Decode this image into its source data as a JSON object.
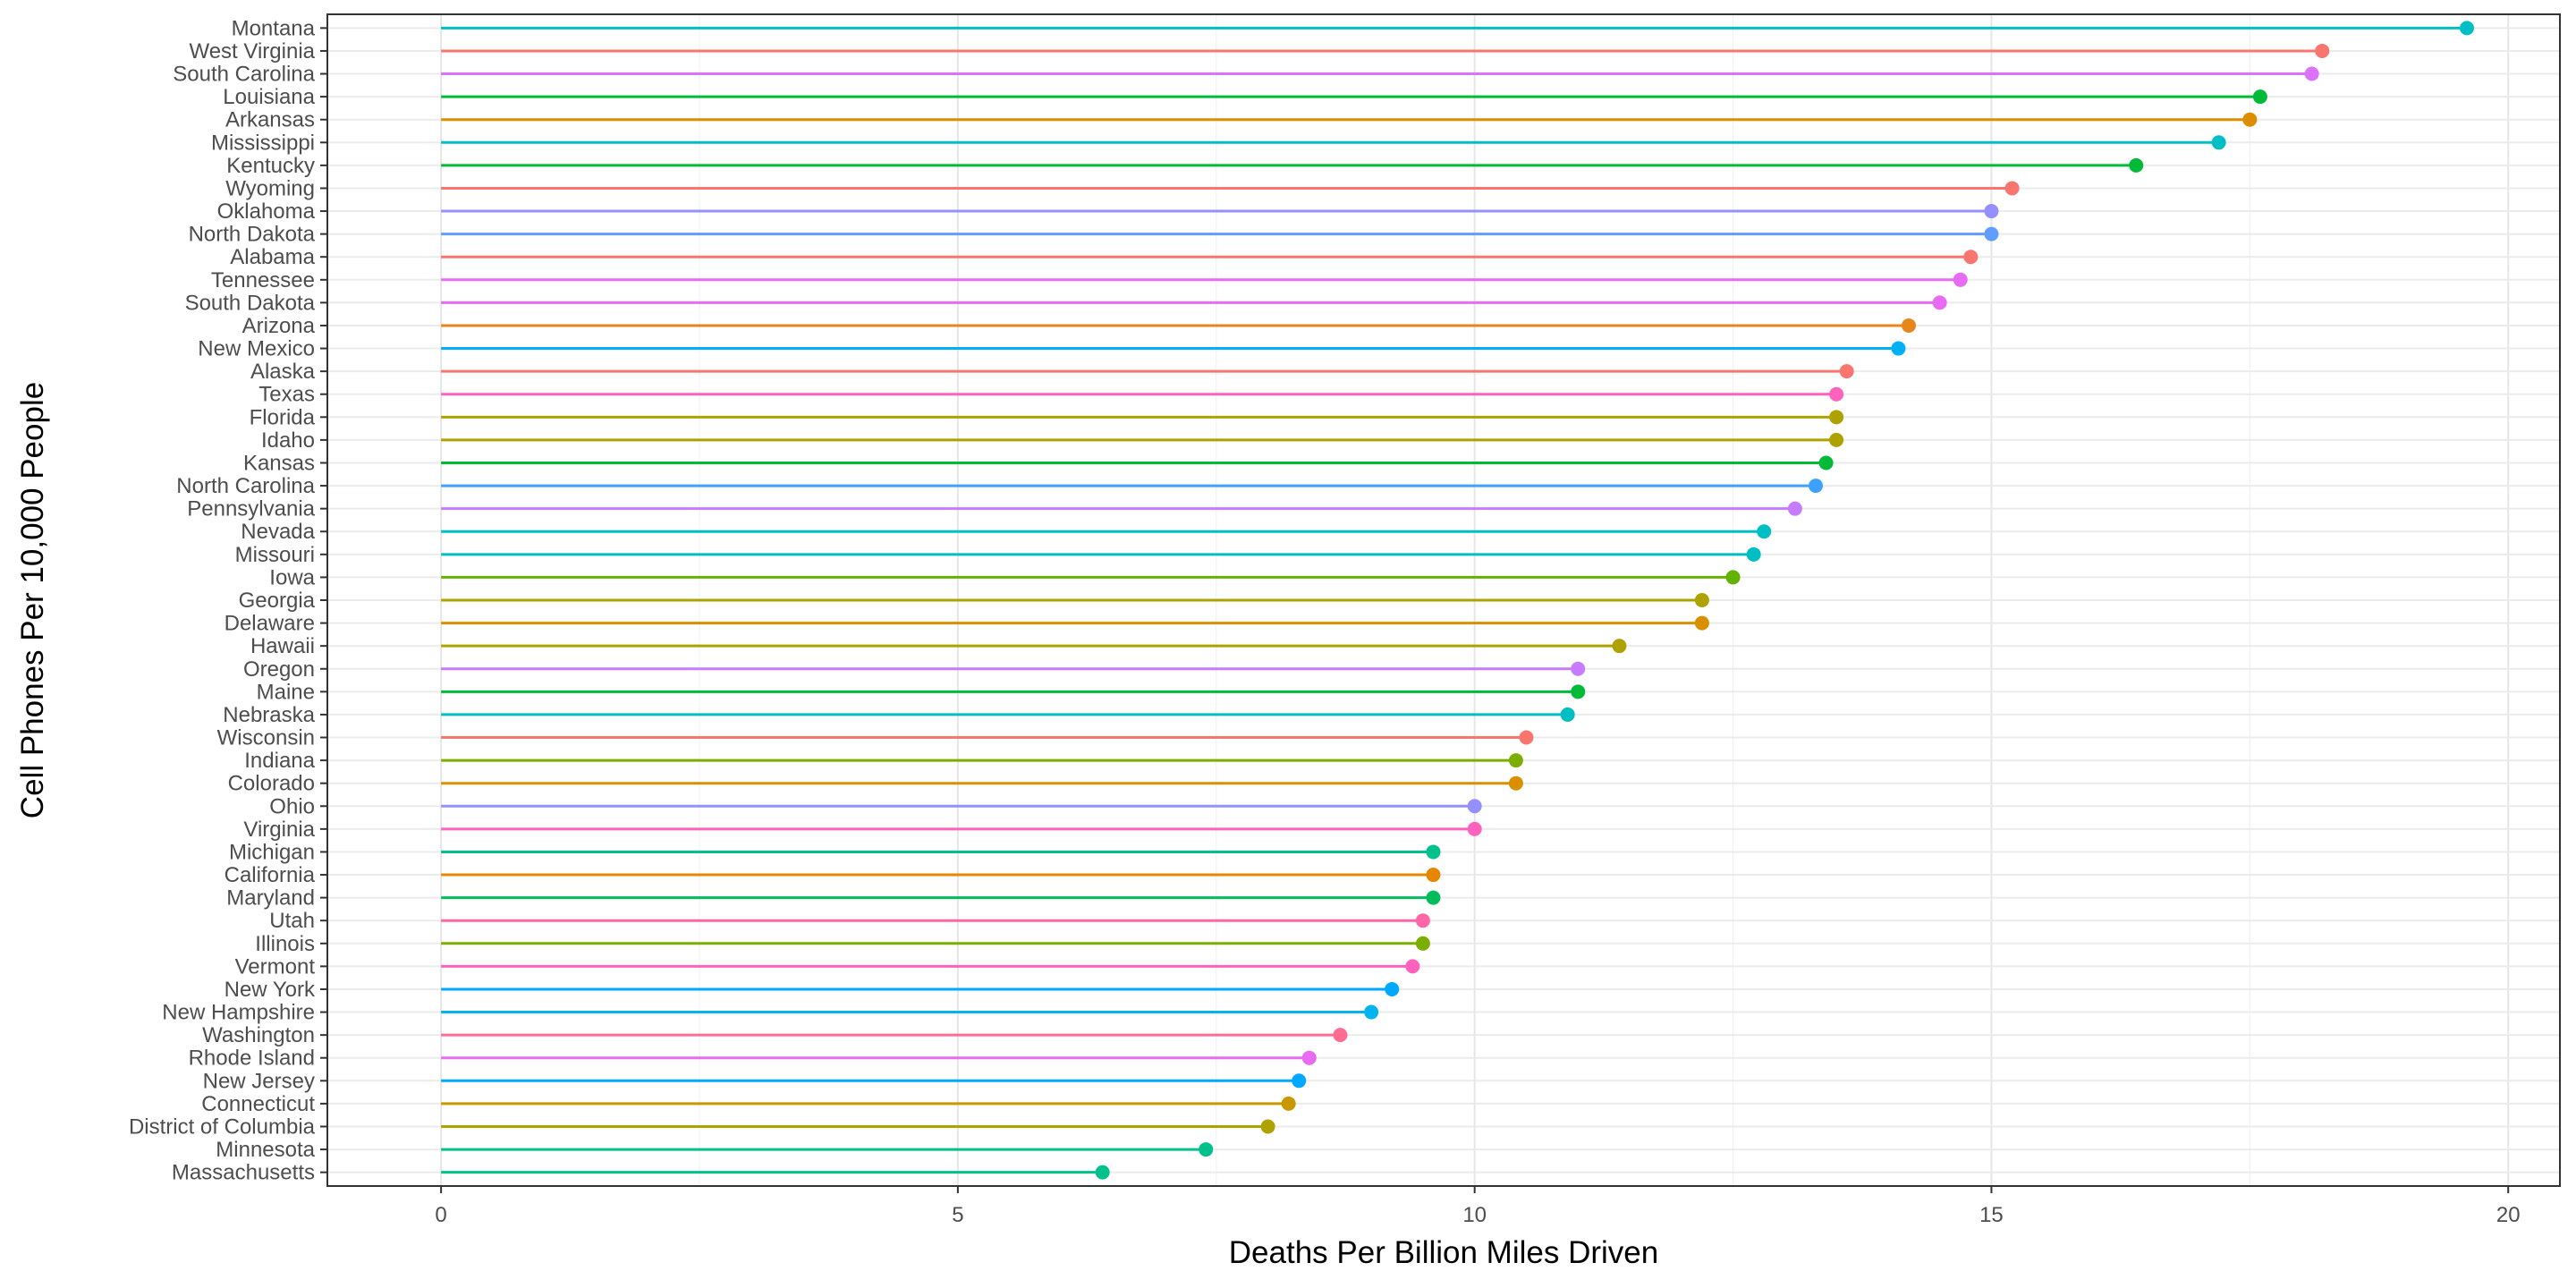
{
  "chart_data": {
    "type": "lollipop",
    "xlabel": "Deaths Per Billion Miles Driven",
    "ylabel": "Cell Phones Per 10,000 People",
    "xlim": [
      -1.1,
      20.5
    ],
    "xticks": [
      0,
      5,
      10,
      15,
      20
    ],
    "grid": true,
    "legend": "none",
    "categories": [
      "Montana",
      "West Virginia",
      "South Carolina",
      "Louisiana",
      "Arkansas",
      "Mississippi",
      "Kentucky",
      "Wyoming",
      "Oklahoma",
      "North Dakota",
      "Alabama",
      "Tennessee",
      "South Dakota",
      "Arizona",
      "New Mexico",
      "Alaska",
      "Texas",
      "Florida",
      "Idaho",
      "Kansas",
      "North Carolina",
      "Pennsylvania",
      "Nevada",
      "Missouri",
      "Iowa",
      "Georgia",
      "Delaware",
      "Hawaii",
      "Oregon",
      "Maine",
      "Nebraska",
      "Wisconsin",
      "Indiana",
      "Colorado",
      "Ohio",
      "Virginia",
      "Michigan",
      "California",
      "Maryland",
      "Utah",
      "Illinois",
      "Vermont",
      "New York",
      "New Hampshire",
      "Washington",
      "Rhode Island",
      "New Jersey",
      "Connecticut",
      "District of Columbia",
      "Minnesota",
      "Massachusetts"
    ],
    "values": [
      19.6,
      18.2,
      18.1,
      17.6,
      17.5,
      17.2,
      16.4,
      15.2,
      15.0,
      15.0,
      14.8,
      14.7,
      14.5,
      14.2,
      14.1,
      13.6,
      13.5,
      13.5,
      13.5,
      13.4,
      13.3,
      13.1,
      12.8,
      12.7,
      12.5,
      12.2,
      12.2,
      11.4,
      11.0,
      11.0,
      10.9,
      10.5,
      10.4,
      10.4,
      10.0,
      10.0,
      9.6,
      9.6,
      9.6,
      9.5,
      9.5,
      9.4,
      9.2,
      9.0,
      8.7,
      8.4,
      8.3,
      8.2,
      8.0,
      7.4,
      6.4
    ],
    "colors": [
      "#00BFC4",
      "#F8766D",
      "#DC71FA",
      "#00BA38",
      "#DE8C00",
      "#00BFC4",
      "#00BA38",
      "#F8766D",
      "#9590FF",
      "#619CFF",
      "#F8766D",
      "#E76BF3",
      "#E76BF3",
      "#E7861B",
      "#00B0F6",
      "#F8766D",
      "#FF62BC",
      "#AEA200",
      "#AEA200",
      "#00BA38",
      "#3DA1FF",
      "#C77CFF",
      "#00BFC4",
      "#00BFC4",
      "#64B200",
      "#AEA200",
      "#D89000",
      "#AEA200",
      "#C77CFF",
      "#00BA38",
      "#00BFC4",
      "#F8766D",
      "#7CAE00",
      "#D89000",
      "#9590FF",
      "#FF62BC",
      "#00C08B",
      "#E58700",
      "#00BD5C",
      "#FF66A8",
      "#7CAE00",
      "#FF62BC",
      "#00A9FF",
      "#00B4F0",
      "#FF6C91",
      "#E76BF3",
      "#00A9FF",
      "#C99800",
      "#AEA200",
      "#00C08B",
      "#00C08B"
    ]
  }
}
